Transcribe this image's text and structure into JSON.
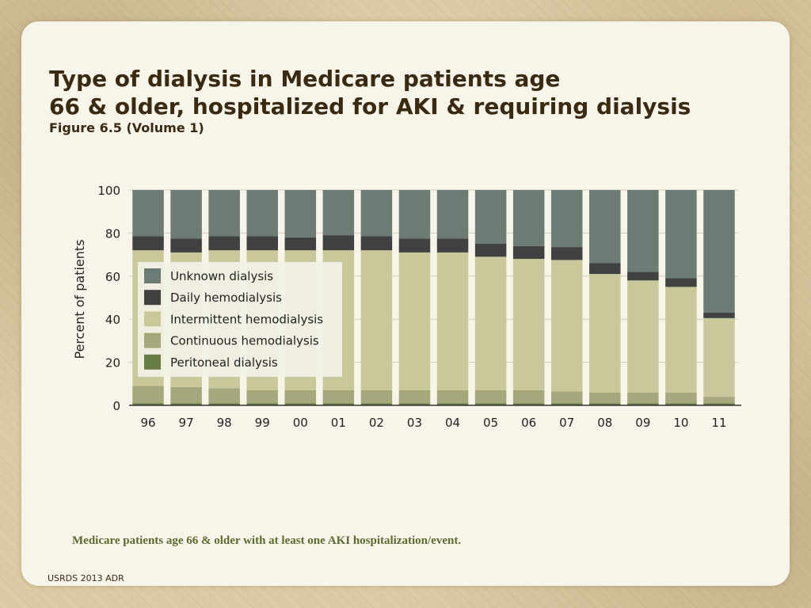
{
  "title_line1": "Type of dialysis in Medicare patients age",
  "title_line2": "66 & older, hospitalized for AKI & requiring dialysis",
  "subtitle": "Figure 6.5 (Volume 1)",
  "caption": "Medicare patients age 66 & older with at least one AKI hospitalization/event.",
  "footer": "USRDS 2013 ADR",
  "chart_data": {
    "type": "bar",
    "stacked": true,
    "title": "",
    "xlabel": "",
    "ylabel": "Percent of patients",
    "ylim": [
      0,
      100
    ],
    "yticks": [
      0,
      20,
      40,
      60,
      80,
      100
    ],
    "grid": true,
    "legend_position": "inside, left-center",
    "categories": [
      "96",
      "97",
      "98",
      "99",
      "00",
      "01",
      "02",
      "03",
      "04",
      "05",
      "06",
      "07",
      "08",
      "09",
      "10",
      "11"
    ],
    "series": [
      {
        "name": "Peritoneal dialysis",
        "color": "#687d45",
        "values": [
          1,
          1,
          1,
          1,
          1,
          1,
          1,
          1,
          1,
          1,
          1,
          1,
          1,
          1,
          1,
          1
        ]
      },
      {
        "name": "Continuous hemodialysis",
        "color": "#a6a77a",
        "values": [
          8,
          7.5,
          7,
          6,
          6,
          6,
          6,
          6,
          6,
          6,
          6,
          5.5,
          5,
          5,
          5,
          3
        ]
      },
      {
        "name": "Intermittent hemodialysis",
        "color": "#c9c89a",
        "values": [
          63,
          62.5,
          64,
          65,
          65,
          65,
          65,
          64,
          64,
          62,
          61,
          61,
          55,
          52,
          49,
          36.5
        ]
      },
      {
        "name": "Daily hemodialysis",
        "color": "#3f4240",
        "values": [
          6.5,
          6.5,
          6.5,
          6.5,
          6,
          7,
          6.5,
          6.5,
          6.5,
          6,
          6,
          6,
          5,
          4,
          4,
          2.5
        ]
      },
      {
        "name": "Unknown dialysis",
        "color": "#6c7c74",
        "values": [
          21.5,
          22.5,
          21.5,
          21.5,
          22,
          21,
          21.5,
          22.5,
          22.5,
          25,
          26,
          26.5,
          34,
          38,
          41,
          57
        ]
      }
    ],
    "legend_order": [
      "Unknown dialysis",
      "Daily hemodialysis",
      "Intermittent hemodialysis",
      "Continuous hemodialysis",
      "Peritoneal dialysis"
    ],
    "colors": {
      "gridline": "#cfcfc0",
      "axis": "#333333",
      "tick_text": "#222222"
    }
  }
}
